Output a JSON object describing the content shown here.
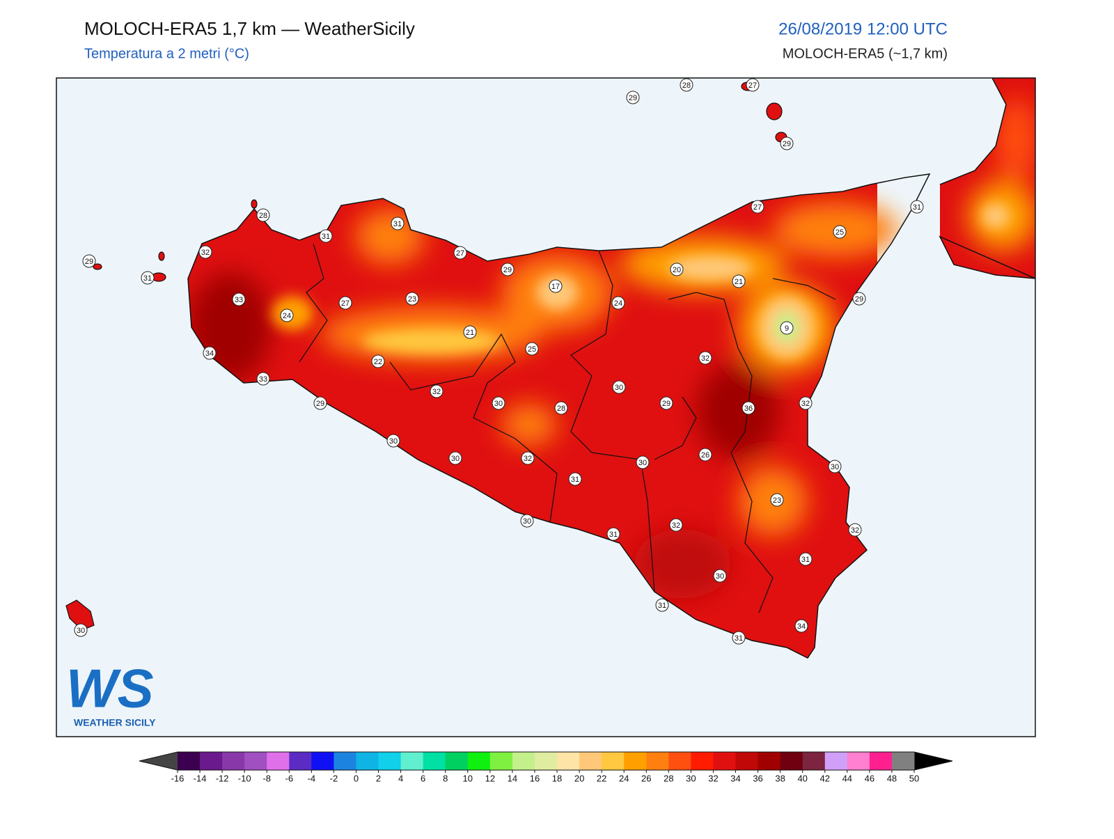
{
  "header": {
    "title": "MOLOCH-ERA5 1,7 km — WeatherSicily",
    "subtitle": "Temperatura a 2 metri (°C)",
    "datetime": "26/08/2019 12:00 UTC",
    "model": "MOLOCH-ERA5 (~1,7 km)"
  },
  "stations": [
    28,
    27,
    29,
    29,
    28,
    31,
    31,
    27,
    31,
    25,
    32,
    27,
    29,
    29,
    31,
    20,
    21,
    17,
    29,
    33,
    27,
    23,
    24,
    24,
    9,
    21,
    25,
    34,
    32,
    22,
    33,
    30,
    32,
    29,
    30,
    28,
    29,
    36,
    32,
    30,
    26,
    30,
    32,
    30,
    30,
    31,
    23,
    30,
    32,
    31,
    32,
    31,
    30,
    31,
    34,
    31,
    30
  ],
  "colorbar": {
    "ticks": [
      -16,
      -14,
      -12,
      -10,
      -8,
      -6,
      -4,
      -2,
      0,
      2,
      4,
      6,
      8,
      10,
      12,
      14,
      16,
      18,
      20,
      22,
      24,
      26,
      28,
      30,
      32,
      34,
      36,
      38,
      40,
      42,
      44,
      46,
      48,
      50
    ],
    "colors": [
      "#3c0050",
      "#6a1a8c",
      "#8838a8",
      "#a050c0",
      "#e070ea",
      "#5a2cc4",
      "#1010f4",
      "#1c84e0",
      "#10b4e4",
      "#10d0ea",
      "#60f0d0",
      "#00e0a4",
      "#00d060",
      "#10f010",
      "#80f040",
      "#c4f08c",
      "#e0eca0",
      "#ffe4a8",
      "#ffc878",
      "#ffc840",
      "#ffa000",
      "#ff8010",
      "#ff5010",
      "#ff1c00",
      "#e01010",
      "#c00808",
      "#a00000",
      "#700010",
      "#7c2440",
      "#d0a0f8",
      "#ff80d0",
      "#ff2090",
      "#808080",
      "#404040"
    ],
    "under_color": "#444444",
    "over_color": "#000000"
  },
  "logo": {
    "text": "WS",
    "caption": "WEATHER SICILY"
  }
}
